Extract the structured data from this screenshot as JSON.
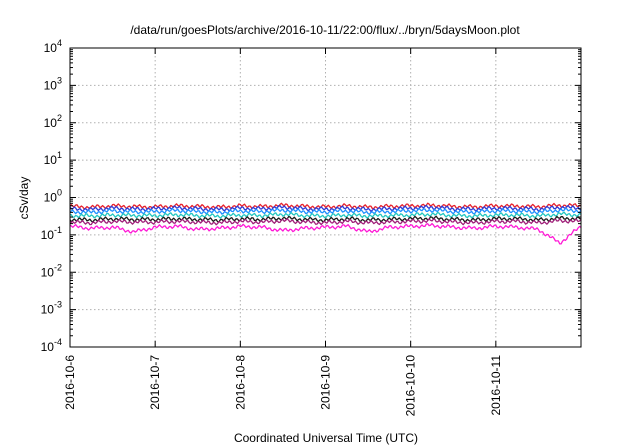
{
  "chart_data": {
    "type": "line",
    "title": "/data/run/goesPlots/archive/2016-10-11/22:00/flux/../bryn/5daysMoon.plot",
    "xlabel": "Coordinated Universal Time (UTC)",
    "ylabel": "cSv/day",
    "yscale": "log",
    "ylim": [
      0.0001,
      10000
    ],
    "yticks": [
      {
        "value": 0.0001,
        "base": "10",
        "exp": "-4"
      },
      {
        "value": 0.001,
        "base": "10",
        "exp": "-3"
      },
      {
        "value": 0.01,
        "base": "10",
        "exp": "-2"
      },
      {
        "value": 0.1,
        "base": "10",
        "exp": "-1"
      },
      {
        "value": 1,
        "base": "10",
        "exp": "0"
      },
      {
        "value": 10,
        "base": "10",
        "exp": "1"
      },
      {
        "value": 100,
        "base": "10",
        "exp": "2"
      },
      {
        "value": 1000,
        "base": "10",
        "exp": "3"
      },
      {
        "value": 10000,
        "base": "10",
        "exp": "4"
      }
    ],
    "xlim": [
      "2016-10-06",
      "2016-10-12"
    ],
    "xticks": [
      "2016-10-6",
      "2016-10-7",
      "2016-10-8",
      "2016-10-9",
      "2016-10-10",
      "2016-10-11"
    ],
    "grid": true,
    "x": [
      "2016-10-06 00:00",
      "2016-10-06 06:00",
      "2016-10-06 12:00",
      "2016-10-06 18:00",
      "2016-10-07 00:00",
      "2016-10-07 06:00",
      "2016-10-07 12:00",
      "2016-10-07 18:00",
      "2016-10-08 00:00",
      "2016-10-08 06:00",
      "2016-10-08 12:00",
      "2016-10-08 18:00",
      "2016-10-09 00:00",
      "2016-10-09 06:00",
      "2016-10-09 12:00",
      "2016-10-09 18:00",
      "2016-10-10 00:00",
      "2016-10-10 06:00",
      "2016-10-10 12:00",
      "2016-10-10 18:00",
      "2016-10-11 00:00",
      "2016-10-11 06:00",
      "2016-10-11 12:00",
      "2016-10-11 18:00",
      "2016-10-12 00:00"
    ],
    "series": [
      {
        "color": "#e8212b",
        "values": [
          0.58,
          0.55,
          0.6,
          0.57,
          0.56,
          0.6,
          0.58,
          0.55,
          0.6,
          0.57,
          0.62,
          0.58,
          0.56,
          0.6,
          0.55,
          0.58,
          0.6,
          0.62,
          0.58,
          0.56,
          0.6,
          0.59,
          0.57,
          0.62,
          0.6
        ]
      },
      {
        "color": "#2f3bd6",
        "values": [
          0.5,
          0.48,
          0.52,
          0.49,
          0.5,
          0.53,
          0.5,
          0.48,
          0.52,
          0.5,
          0.55,
          0.5,
          0.49,
          0.52,
          0.48,
          0.5,
          0.52,
          0.55,
          0.5,
          0.49,
          0.52,
          0.51,
          0.49,
          0.55,
          0.52
        ]
      },
      {
        "color": "#1e90ff",
        "values": [
          0.42,
          0.4,
          0.44,
          0.41,
          0.42,
          0.45,
          0.42,
          0.4,
          0.44,
          0.42,
          0.46,
          0.42,
          0.41,
          0.44,
          0.4,
          0.42,
          0.44,
          0.46,
          0.42,
          0.41,
          0.44,
          0.43,
          0.41,
          0.46,
          0.44
        ]
      },
      {
        "color": "#22c7c0",
        "values": [
          0.33,
          0.32,
          0.34,
          0.33,
          0.33,
          0.35,
          0.33,
          0.32,
          0.34,
          0.33,
          0.36,
          0.33,
          0.32,
          0.34,
          0.32,
          0.33,
          0.34,
          0.36,
          0.33,
          0.32,
          0.34,
          0.34,
          0.32,
          0.36,
          0.34
        ]
      },
      {
        "color": "#1a1a1a",
        "values": [
          0.26,
          0.25,
          0.27,
          0.26,
          0.26,
          0.27,
          0.26,
          0.25,
          0.27,
          0.26,
          0.28,
          0.26,
          0.25,
          0.27,
          0.25,
          0.26,
          0.27,
          0.28,
          0.26,
          0.25,
          0.27,
          0.27,
          0.25,
          0.28,
          0.27
        ]
      },
      {
        "color": "#a0207a",
        "values": [
          0.22,
          0.21,
          0.23,
          0.22,
          0.22,
          0.23,
          0.22,
          0.21,
          0.23,
          0.22,
          0.24,
          0.22,
          0.21,
          0.23,
          0.21,
          0.22,
          0.23,
          0.24,
          0.22,
          0.21,
          0.23,
          0.23,
          0.21,
          0.24,
          0.23
        ]
      },
      {
        "color": "#ff19d6",
        "values": [
          0.17,
          0.15,
          0.16,
          0.12,
          0.16,
          0.17,
          0.14,
          0.15,
          0.17,
          0.16,
          0.13,
          0.15,
          0.16,
          0.17,
          0.12,
          0.16,
          0.17,
          0.18,
          0.16,
          0.15,
          0.17,
          0.16,
          0.14,
          0.06,
          0.17
        ]
      }
    ]
  }
}
